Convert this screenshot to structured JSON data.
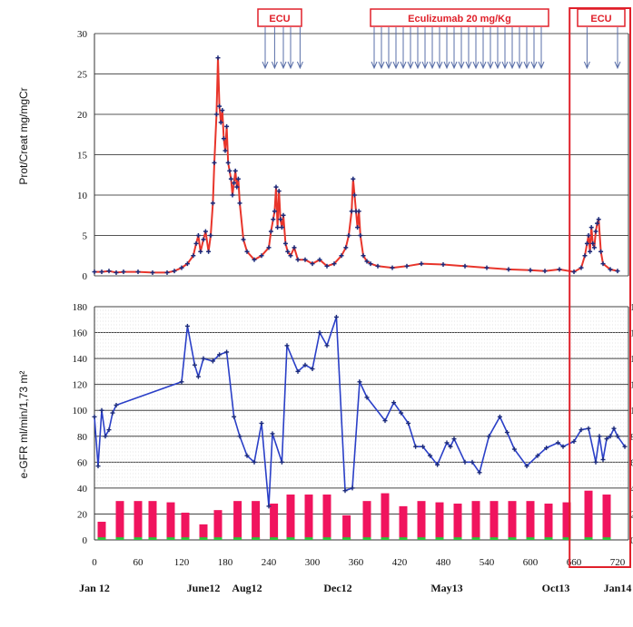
{
  "chart_data": [
    {
      "type": "line",
      "ylabel": "Prot/Creat mg/mgCr",
      "ylim": [
        0,
        30
      ],
      "yticks": [
        "0",
        "5",
        "10",
        "15",
        "20",
        "25",
        "30"
      ],
      "grid": true,
      "series": [
        {
          "color": "#e8352b",
          "marker_color": "#1c2b7a",
          "x": [
            0,
            10,
            20,
            30,
            40,
            60,
            80,
            100,
            110,
            120,
            128,
            136,
            140,
            143,
            146,
            150,
            153,
            157,
            160,
            163,
            165,
            168,
            170,
            172,
            174,
            176,
            178,
            180,
            182,
            184,
            186,
            188,
            190,
            192,
            194,
            196,
            198,
            200,
            205,
            210,
            220,
            230,
            240,
            243,
            246,
            248,
            250,
            252,
            254,
            256,
            258,
            260,
            263,
            266,
            270,
            275,
            280,
            290,
            300,
            310,
            320,
            330,
            340,
            346,
            350,
            354,
            356,
            358,
            360,
            362,
            364,
            366,
            370,
            375,
            380,
            390,
            410,
            430,
            450,
            480,
            510,
            540,
            570,
            600,
            620,
            640,
            660,
            670,
            675,
            678,
            680,
            682,
            684,
            686,
            688,
            690,
            692,
            694,
            697,
            700,
            710,
            720
          ],
          "y": [
            0.5,
            0.5,
            0.6,
            0.4,
            0.5,
            0.5,
            0.4,
            0.4,
            0.6,
            1.0,
            1.5,
            2.5,
            4.0,
            5.0,
            3.0,
            4.5,
            5.5,
            3.0,
            5.0,
            9.0,
            14.0,
            20.0,
            27.0,
            21.0,
            19.0,
            20.5,
            17.0,
            15.5,
            18.5,
            14.0,
            13.0,
            12.0,
            10.0,
            11.5,
            13.0,
            11.0,
            12.0,
            9.0,
            4.5,
            3.0,
            2.0,
            2.5,
            3.5,
            5.5,
            7.0,
            8.0,
            11.0,
            6.0,
            10.5,
            7.0,
            6.0,
            7.5,
            4.0,
            3.0,
            2.5,
            3.5,
            2.0,
            2.0,
            1.5,
            2.0,
            1.2,
            1.5,
            2.5,
            3.5,
            5.0,
            8.0,
            12.0,
            10.0,
            8.0,
            6.0,
            8.0,
            5.0,
            2.5,
            1.8,
            1.5,
            1.2,
            1.0,
            1.2,
            1.5,
            1.4,
            1.2,
            1.0,
            0.8,
            0.7,
            0.6,
            0.8,
            0.5,
            1.0,
            2.5,
            4.0,
            5.0,
            3.0,
            6.0,
            4.0,
            3.5,
            5.5,
            6.5,
            7.0,
            3.0,
            1.5,
            0.8,
            0.6
          ]
        }
      ]
    },
    {
      "type": "line",
      "ylabel": "e-GFR ml/min/1,73 m²",
      "ylim": [
        0,
        180
      ],
      "yticks": [
        "0",
        "20",
        "40",
        "60",
        "80",
        "100",
        "120",
        "140",
        "160",
        "180"
      ],
      "xlim": [
        0,
        735
      ],
      "xticks": [
        "0",
        "60",
        "120",
        "180",
        "240",
        "300",
        "360",
        "420",
        "480",
        "540",
        "600",
        "660",
        "720"
      ],
      "date_labels": [
        {
          "x": 0,
          "label": "Jan 12"
        },
        {
          "x": 150,
          "label": "June12"
        },
        {
          "x": 210,
          "label": "Aug12"
        },
        {
          "x": 335,
          "label": "Dec12"
        },
        {
          "x": 485,
          "label": "May13"
        },
        {
          "x": 635,
          "label": "Oct13"
        },
        {
          "x": 720,
          "label": "Jan14"
        }
      ],
      "grid": true,
      "series": [
        {
          "color": "#2a3fc7",
          "x": [
            0,
            5,
            10,
            15,
            20,
            25,
            30,
            120,
            128,
            138,
            143,
            150,
            163,
            172,
            182,
            192,
            200,
            210,
            220,
            230,
            240,
            245,
            258,
            265,
            280,
            290,
            300,
            310,
            320,
            333,
            345,
            355,
            365,
            375,
            400,
            412,
            422,
            432,
            442,
            452,
            462,
            472,
            485,
            490,
            495,
            510,
            520,
            530,
            543,
            558,
            568,
            578,
            595,
            610,
            622,
            638,
            645,
            660,
            670,
            680,
            690,
            695,
            700,
            705,
            710,
            715,
            720,
            730
          ],
          "y": [
            95,
            57,
            100,
            80,
            85,
            98,
            104,
            122,
            165,
            135,
            126,
            140,
            138,
            143,
            145,
            95,
            80,
            65,
            60,
            90,
            26,
            82,
            60,
            150,
            130,
            135,
            132,
            160,
            150,
            172,
            38,
            40,
            122,
            110,
            92,
            106,
            98,
            90,
            72,
            72,
            65,
            58,
            75,
            72,
            78,
            60,
            60,
            52,
            80,
            95,
            83,
            70,
            57,
            65,
            71,
            75,
            72,
            76,
            85,
            86,
            60,
            80,
            62,
            78,
            80,
            86,
            80,
            72
          ]
        },
        {
          "type": "bar",
          "color": "#f0145e",
          "x": [
            10,
            35,
            60,
            80,
            105,
            125,
            150,
            170,
            197,
            222,
            247,
            270,
            295,
            320,
            347,
            375,
            400,
            425,
            450,
            475,
            500,
            525,
            550,
            575,
            600,
            625,
            650,
            680,
            705
          ],
          "y": [
            14,
            30,
            30,
            30,
            29,
            21,
            12,
            23,
            30,
            30,
            28,
            35,
            35,
            35,
            19,
            30,
            36,
            26,
            30,
            29,
            28,
            30,
            30,
            30,
            30,
            28,
            29,
            38,
            35
          ]
        },
        {
          "type": "bar",
          "color": "#2cc43a",
          "x": [
            10,
            35,
            60,
            80,
            105,
            125,
            150,
            170,
            197,
            222,
            247,
            270,
            295,
            320,
            347,
            375,
            400,
            425,
            450,
            475,
            500,
            525,
            550,
            575,
            600,
            625,
            650,
            680,
            705
          ],
          "y": [
            2,
            2,
            2,
            2,
            2,
            2,
            2,
            2,
            2,
            2,
            2,
            2,
            2,
            2,
            2,
            2,
            2,
            2,
            2,
            2,
            2,
            2,
            2,
            2,
            2,
            2,
            2,
            2,
            2
          ]
        }
      ]
    }
  ],
  "annotations": [
    {
      "label": "ECU",
      "x_start": 225,
      "x_end": 285,
      "doses": [
        235,
        248,
        260,
        270,
        283
      ]
    },
    {
      "label": "Eculizumab 20 mg/Kg",
      "x_start": 380,
      "x_end": 625,
      "doses": [
        385,
        395,
        405,
        415,
        425,
        435,
        445,
        455,
        465,
        475,
        485,
        495,
        505,
        515,
        525,
        535,
        545,
        555,
        565,
        575,
        585,
        595,
        605,
        615
      ]
    },
    {
      "label": "ECU",
      "x_start": 665,
      "x_end": 730,
      "doses": [
        678,
        720
      ]
    }
  ],
  "highlight_box": {
    "x_start": 654,
    "x_end": 742,
    "color": "#e0202a"
  }
}
